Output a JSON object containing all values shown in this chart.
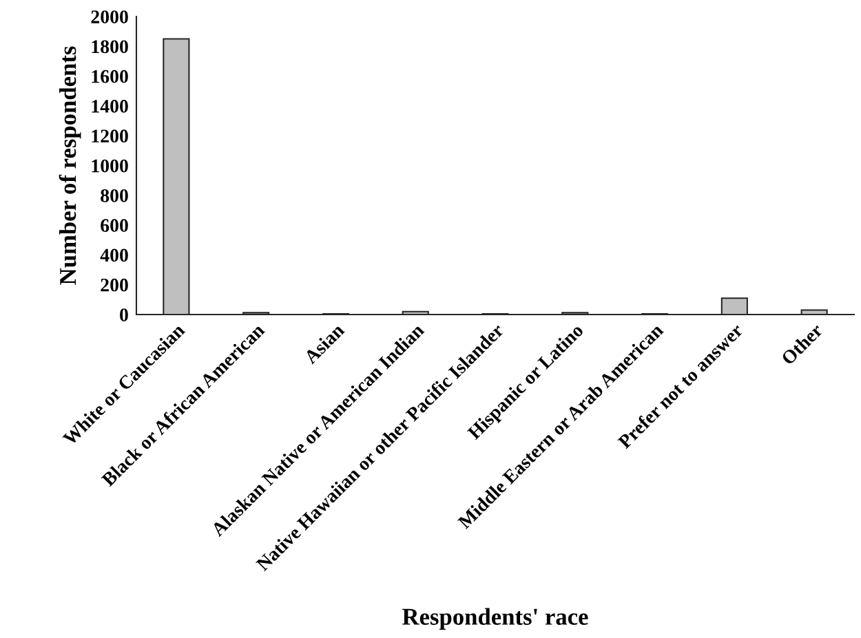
{
  "chart_data": {
    "type": "bar",
    "xlabel": "Respondents' race",
    "ylabel": "Number of respondents",
    "categories": [
      "White or Caucasian",
      "Black or African American",
      "Asian",
      "Alaskan Native or American Indian",
      "Native Hawaiian or other Pacific Islander",
      "Hispanic or Latino",
      "Middle Eastern or Arab American",
      "Prefer not to answer",
      "Other"
    ],
    "values": [
      1850,
      12,
      5,
      20,
      5,
      12,
      5,
      110,
      30
    ],
    "color": "#bfbfbf",
    "ylim": [
      0,
      2000
    ],
    "yticks": [
      0,
      200,
      400,
      600,
      800,
      1000,
      1200,
      1400,
      1600,
      1800,
      2000
    ],
    "grid": false,
    "legend": false
  }
}
